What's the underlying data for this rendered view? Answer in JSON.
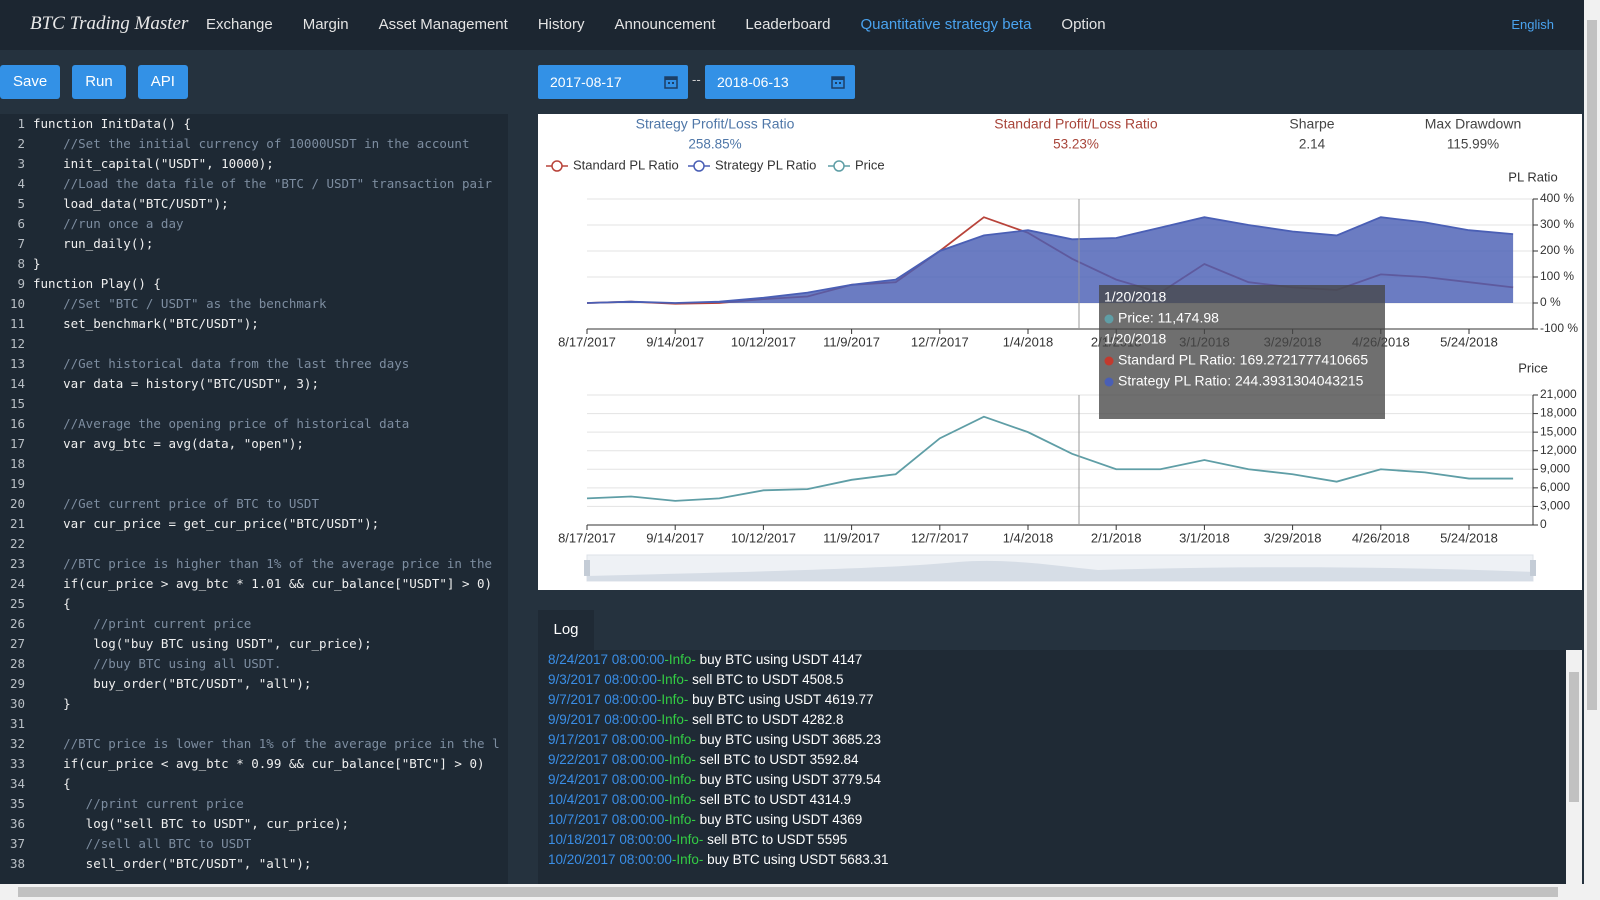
{
  "nav": {
    "brand": "BTC Trading Master",
    "items": [
      "Exchange",
      "Margin",
      "Asset Management",
      "History",
      "Announcement",
      "Leaderboard",
      "Quantitative strategy beta",
      "Option"
    ],
    "active": 6,
    "language": "English"
  },
  "toolbar": {
    "buttons": [
      "Save",
      "Run",
      "API"
    ],
    "start_date": "2017-08-17",
    "separator": "--",
    "end_date": "2018-06-13"
  },
  "code": {
    "line_numbers": [
      1,
      2,
      3,
      4,
      5,
      6,
      7,
      8,
      9,
      10,
      11,
      12,
      13,
      14,
      15,
      16,
      17,
      18,
      19,
      20,
      21,
      22,
      23,
      24,
      25,
      26,
      27,
      28,
      29,
      30,
      31,
      32,
      33,
      34,
      35,
      36,
      37,
      38
    ],
    "lines": [
      "function InitData() {",
      "    //Set the initial currency of 10000USDT in the account",
      "    init_capital(\"USDT\", 10000);",
      "    //Load the data file of the \"BTC / USDT\" transaction pair",
      "    load_data(\"BTC/USDT\");",
      "    //run once a day",
      "    run_daily();",
      "}",
      "function Play() {",
      "    //Set \"BTC / USDT\" as the benchmark",
      "    set_benchmark(\"BTC/USDT\");",
      null,
      "    //Get historical data from the last three days",
      "    var data = history(\"BTC/USDT\", 3);",
      null,
      "    //Average the opening price of historical data",
      "    var avg_btc = avg(data, \"open\");",
      null,
      null,
      "    //Get current price of BTC to USDT",
      "    var cur_price = get_cur_price(\"BTC/USDT\");",
      null,
      "    //BTC price is higher than 1% of the average price in the",
      "    if(cur_price > avg_btc * 1.01 && cur_balance[\"USDT\"] > 0)",
      "    {",
      "        //print current price",
      "        log(\"buy BTC using USDT\", cur_price);",
      "        //buy BTC using all USDT.",
      "        buy_order(\"BTC/USDT\", \"all\");",
      "    }",
      null,
      "    //BTC price is lower than 1% of the average price in the l",
      "    if(cur_price < avg_btc * 0.99 && cur_balance[\"BTC\"] > 0)",
      "    {",
      "       //print current price",
      "       log(\"sell BTC to USDT\", cur_price);",
      "       //sell all BTC to USDT",
      "       sell_order(\"BTC/USDT\", \"all\");"
    ]
  },
  "stats": [
    {
      "label": "Strategy Profit/Loss Ratio",
      "value": "258.85%",
      "color": "#4f77a8"
    },
    {
      "label": "Standard Profit/Loss Ratio",
      "value": "53.23%",
      "color": "#a8453a"
    },
    {
      "label": "Sharpe",
      "value": "2.14",
      "color": "#444444"
    },
    {
      "label": "Max Drawdown",
      "value": "115.99%",
      "color": "#444444"
    }
  ],
  "chart_data": [
    {
      "type": "line",
      "y_label": "PL Ratio",
      "categories": [
        "8/17/2017",
        null,
        "9/14/2017",
        null,
        "10/12/2017",
        null,
        "11/9/2017",
        null,
        "12/7/2017",
        null,
        "1/4/2018",
        null,
        "2/1/2018",
        null,
        "3/1/2018",
        null,
        "3/29/2018",
        null,
        "4/26/2018",
        null,
        "5/24/2018",
        null
      ],
      "ylim": [
        -100,
        400
      ],
      "yticks": [
        {
          "value": 400,
          "label": "400 %"
        },
        {
          "value": 300,
          "label": "300 %"
        },
        {
          "value": 200,
          "label": "200 %"
        },
        {
          "value": 100,
          "label": "100 %"
        },
        {
          "value": 0,
          "label": "0 %"
        },
        {
          "value": -100,
          "label": "-100 %"
        }
      ],
      "grid": true,
      "series": [
        {
          "name": "Standard PL Ratio",
          "color": "#b8433a",
          "values": [
            0,
            5,
            -3,
            0,
            15,
            25,
            70,
            80,
            200,
            330,
            270,
            170,
            90,
            40,
            150,
            80,
            60,
            50,
            110,
            100,
            80,
            60
          ]
        },
        {
          "name": "Strategy PL Ratio",
          "color": "#4a5fb5",
          "area": true,
          "values": [
            0,
            5,
            0,
            5,
            20,
            40,
            70,
            90,
            200,
            260,
            280,
            245,
            250,
            290,
            330,
            300,
            275,
            260,
            330,
            310,
            280,
            265
          ]
        }
      ]
    },
    {
      "type": "line",
      "y_label": "Price",
      "categories": [
        "8/17/2017",
        null,
        "9/14/2017",
        null,
        "10/12/2017",
        null,
        "11/9/2017",
        null,
        "12/7/2017",
        null,
        "1/4/2018",
        null,
        "2/1/2018",
        null,
        "3/1/2018",
        null,
        "3/29/2018",
        null,
        "4/26/2018",
        null,
        "5/24/2018",
        null
      ],
      "ylim": [
        0,
        21000
      ],
      "yticks": [
        {
          "value": 21000,
          "label": "21,000"
        },
        {
          "value": 18000,
          "label": "18,000"
        },
        {
          "value": 15000,
          "label": "15,000"
        },
        {
          "value": 12000,
          "label": "12,000"
        },
        {
          "value": 9000,
          "label": "9,000"
        },
        {
          "value": 6000,
          "label": "6,000"
        },
        {
          "value": 3000,
          "label": "3,000"
        },
        0
      ],
      "grid": true,
      "series": [
        {
          "name": "Price",
          "color": "#5f9ea6",
          "values": [
            4300,
            4600,
            3900,
            4300,
            5600,
            5800,
            7300,
            8200,
            14000,
            17500,
            15000,
            11500,
            9000,
            9000,
            10500,
            9000,
            8200,
            7000,
            9000,
            8500,
            7500,
            7500
          ]
        }
      ]
    }
  ],
  "tooltip": {
    "groups": [
      {
        "title": "1/20/2018",
        "items": [
          {
            "text": "Price: 11,474.98",
            "color": "#5f9ea6"
          }
        ]
      },
      {
        "title": "1/20/2018",
        "items": [
          {
            "text": "Standard PL Ratio: 169.2721777410665",
            "color": "#c23a2e"
          },
          {
            "text": "Strategy PL Ratio: 244.3931304043215",
            "color": "#4a5fb5"
          }
        ]
      }
    ]
  },
  "log": {
    "tab": "Log",
    "entries": [
      {
        "time": "8/24/2017 08:00:00",
        "level": "-Info-",
        "message": "buy BTC using USDT 4147"
      },
      {
        "time": "9/3/2017 08:00:00",
        "level": "-Info-",
        "message": "sell BTC to USDT 4508.5"
      },
      {
        "time": "9/7/2017 08:00:00",
        "level": "-Info-",
        "message": "buy BTC using USDT 4619.77"
      },
      {
        "time": "9/9/2017 08:00:00",
        "level": "-Info-",
        "message": "sell BTC to USDT 4282.8"
      },
      {
        "time": "9/17/2017 08:00:00",
        "level": "-Info-",
        "message": "buy BTC using USDT 3685.23"
      },
      {
        "time": "9/22/2017 08:00:00",
        "level": "-Info-",
        "message": "sell BTC to USDT 3592.84"
      },
      {
        "time": "9/24/2017 08:00:00",
        "level": "-Info-",
        "message": "buy BTC using USDT 3779.54"
      },
      {
        "time": "10/4/2017 08:00:00",
        "level": "-Info-",
        "message": "sell BTC to USDT 4314.9"
      },
      {
        "time": "10/7/2017 08:00:00",
        "level": "-Info-",
        "message": "buy BTC using USDT 4369"
      },
      {
        "time": "10/18/2017 08:00:00",
        "level": "-Info-",
        "message": "sell BTC to USDT 5595"
      },
      {
        "time": "10/20/2017 08:00:00",
        "level": "-Info-",
        "message": "buy BTC using USDT 5683.31"
      }
    ]
  }
}
